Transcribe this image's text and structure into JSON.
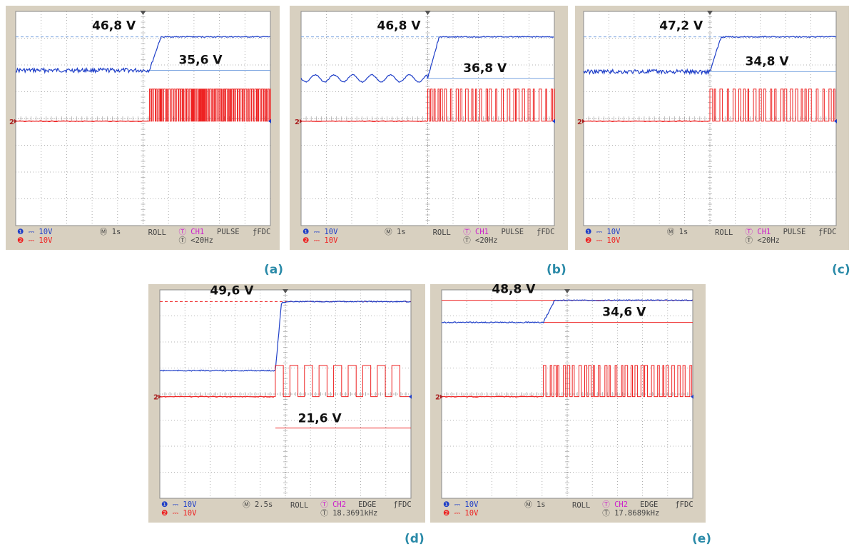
{
  "colors": {
    "bezel": "#d8d0c0",
    "screen": "#ffffff",
    "grid": "#9a9a9a",
    "ch1_trace": "#1f3fc8",
    "ch2_trace": "#ee2222",
    "ref_line": "#7aa4e0",
    "caption": "#2a8aa8",
    "magenta": "#cc22cc"
  },
  "chart_data": [
    {
      "type": "line",
      "panel_label": "(a)",
      "annotations": [
        "46,8 V",
        "35,6 V"
      ],
      "upper_level_v": 46.8,
      "lower_level_v": 35.6,
      "time_divisions": 10,
      "transition_div": 5.25,
      "ch1_before_div": 1.8,
      "ch1_after_div": 3.05,
      "ch1_ripple": "noise",
      "ch2_pwm": "dense",
      "footer": {
        "ch1_label": "10V",
        "ch2_label": "10V",
        "timebase": "1s",
        "mode": "ROLL",
        "trig_channel": "CH1",
        "trig_type": "PULSE",
        "coupling": "FDC",
        "trig_value": "<20Hz"
      }
    },
    {
      "type": "line",
      "panel_label": "(b)",
      "annotations": [
        "46,8 V",
        "36,8 V"
      ],
      "upper_level_v": 46.8,
      "lower_level_v": 36.8,
      "time_divisions": 10,
      "transition_div": 5.0,
      "ch1_before_div": 1.5,
      "ch1_after_div": 3.05,
      "ch1_ripple": "sine",
      "ch2_pwm": "sparse",
      "footer": {
        "ch1_label": "10V",
        "ch2_label": "10V",
        "timebase": "1s",
        "mode": "ROLL",
        "trig_channel": "CH1",
        "trig_type": "PULSE",
        "coupling": "FDC",
        "trig_value": "<20Hz"
      }
    },
    {
      "type": "line",
      "panel_label": "(c)",
      "annotations": [
        "47,2 V",
        "34,8 V"
      ],
      "upper_level_v": 47.2,
      "lower_level_v": 34.8,
      "time_divisions": 10,
      "transition_div": 5.0,
      "ch1_before_div": 1.75,
      "ch1_after_div": 3.05,
      "ch1_ripple": "noise",
      "ch2_pwm": "sparse",
      "footer": {
        "ch1_label": "10V",
        "ch2_label": "10V",
        "timebase": "1s",
        "mode": "ROLL",
        "trig_channel": "CH1",
        "trig_type": "PULSE",
        "coupling": "FDC",
        "trig_value": "<20Hz"
      }
    },
    {
      "type": "line",
      "panel_label": "(d)",
      "annotations": [
        "49,6 V",
        "21,6 V"
      ],
      "upper_level_v": 49.6,
      "lower_level_v": 21.6,
      "time_divisions": 10,
      "transition_div": 4.6,
      "ch1_before_div": 0.9,
      "ch1_after_div": 3.55,
      "ch1_ripple": "flat",
      "ch2_pwm": "square",
      "footer": {
        "ch1_label": "10V",
        "ch2_label": "10V",
        "timebase": "2.5s",
        "mode": "ROLL",
        "trig_channel": "CH2",
        "trig_type": "EDGE",
        "coupling": "FDC",
        "trig_value": "18.3691kHz"
      }
    },
    {
      "type": "line",
      "panel_label": "(e)",
      "annotations": [
        "48,8 V",
        "34,6 V"
      ],
      "upper_level_v": 48.8,
      "lower_level_v": 34.6,
      "time_divisions": 10,
      "transition_div": 4.05,
      "ch1_before_div": 2.75,
      "ch1_after_div": 3.6,
      "ch1_ripple": "flat",
      "ch2_pwm": "sparse",
      "footer": {
        "ch1_label": "10V",
        "ch2_label": "10V",
        "timebase": "1s",
        "mode": "ROLL",
        "trig_channel": "CH2",
        "trig_type": "EDGE",
        "coupling": "FDC",
        "trig_value": "17.8689kHz"
      }
    }
  ]
}
